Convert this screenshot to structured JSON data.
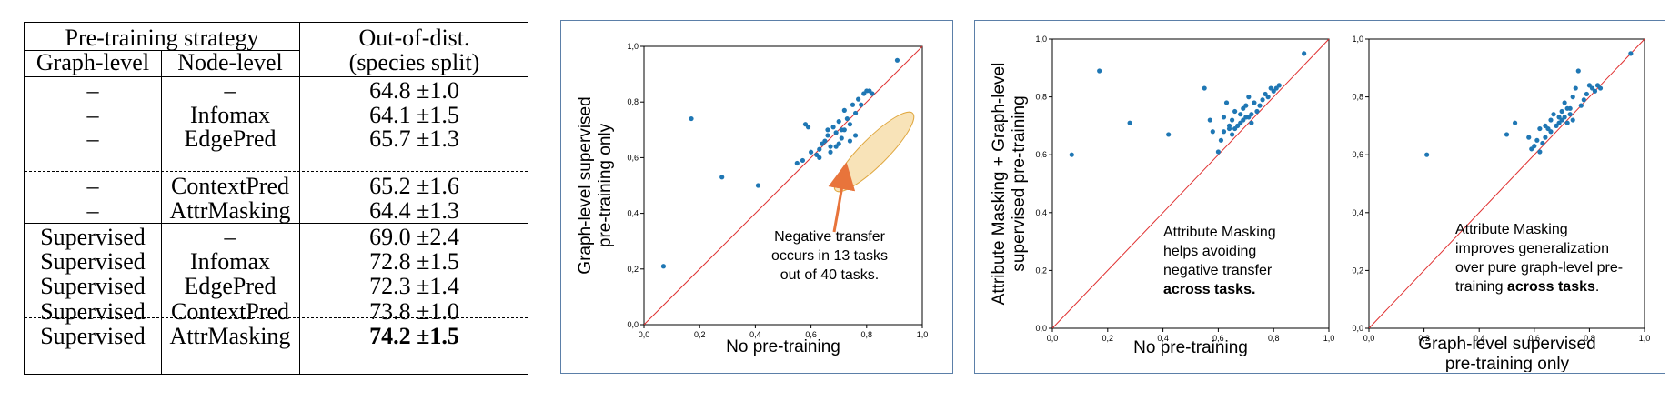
{
  "table": {
    "header_strategy": "Pre-training strategy",
    "header_ood_line1": "Out-of-dist.",
    "header_ood_line2": "(species split)",
    "col_graph": "Graph-level",
    "col_node": "Node-level",
    "rows": [
      {
        "graph": "–",
        "node": "–",
        "score": "64.8 ±1.0",
        "bold": false
      },
      {
        "graph": "–",
        "node": "Infomax",
        "score": "64.1 ±1.5",
        "bold": false
      },
      {
        "graph": "–",
        "node": "EdgePred",
        "score": "65.7 ±1.3",
        "bold": false
      },
      {
        "graph": "–",
        "node": "ContextPred",
        "score": "65.2 ±1.6",
        "bold": false
      },
      {
        "graph": "–",
        "node": "AttrMasking",
        "score": "64.4 ±1.3",
        "bold": false
      },
      {
        "graph": "Supervised",
        "node": "–",
        "score": "69.0 ±2.4",
        "bold": false
      },
      {
        "graph": "Supervised",
        "node": "Infomax",
        "score": "72.8 ±1.5",
        "bold": false
      },
      {
        "graph": "Supervised",
        "node": "EdgePred",
        "score": "72.3 ±1.4",
        "bold": false
      },
      {
        "graph": "Supervised",
        "node": "ContextPred",
        "score": "73.8 ±1.0",
        "bold": false
      },
      {
        "graph": "Supervised",
        "node": "AttrMasking",
        "score": "74.2 ±1.5",
        "bold": true
      }
    ]
  },
  "chart_data": [
    {
      "type": "scatter",
      "xlabel": "No pre-training",
      "ylabel_line1": "Graph-level supervised",
      "ylabel_line2": "pre-training only",
      "xlim": [
        0,
        1
      ],
      "ylim": [
        0,
        1
      ],
      "ticks": [
        "0,0",
        "0,2",
        "0,4",
        "0,6",
        "0,8",
        "1,0"
      ],
      "annotation": [
        "Negative transfer",
        "occurs in 13 tasks",
        "out of 40 tasks."
      ],
      "highlight_color": "#f5d9a0",
      "arrow_color": "#e8743b",
      "point_color": "#1f77b4",
      "diag_color": "#e03030",
      "x": [
        0.07,
        0.17,
        0.28,
        0.41,
        0.58,
        0.55,
        0.62,
        0.63,
        0.65,
        0.66,
        0.67,
        0.68,
        0.69,
        0.7,
        0.71,
        0.72,
        0.73,
        0.74,
        0.75,
        0.76,
        0.77,
        0.78,
        0.79,
        0.8,
        0.81,
        0.82,
        0.6,
        0.57,
        0.64,
        0.72,
        0.74,
        0.76,
        0.69,
        0.67,
        0.71,
        0.91,
        0.59,
        0.63,
        0.66,
        0.7
      ],
      "y": [
        0.21,
        0.74,
        0.53,
        0.5,
        0.72,
        0.58,
        0.61,
        0.63,
        0.66,
        0.68,
        0.64,
        0.71,
        0.69,
        0.73,
        0.7,
        0.77,
        0.74,
        0.72,
        0.79,
        0.76,
        0.81,
        0.79,
        0.83,
        0.84,
        0.84,
        0.83,
        0.62,
        0.59,
        0.65,
        0.7,
        0.66,
        0.68,
        0.64,
        0.62,
        0.67,
        0.95,
        0.71,
        0.6,
        0.7,
        0.65
      ]
    },
    {
      "type": "scatter",
      "xlabel": "No pre-training",
      "ylabel_line1": "Attribute Masking + Graph-level",
      "ylabel_line2": "supervised pre-training",
      "xlim": [
        0,
        1
      ],
      "ylim": [
        0,
        1
      ],
      "ticks": [
        "0,0",
        "0,2",
        "0,4",
        "0,6",
        "0,8",
        "1,0"
      ],
      "annotation": [
        "Attribute Masking",
        "helps avoiding",
        "negative transfer",
        "across tasks."
      ],
      "x": [
        0.07,
        0.17,
        0.28,
        0.42,
        0.55,
        0.57,
        0.58,
        0.6,
        0.61,
        0.62,
        0.63,
        0.64,
        0.65,
        0.66,
        0.67,
        0.68,
        0.69,
        0.7,
        0.71,
        0.72,
        0.73,
        0.74,
        0.75,
        0.76,
        0.77,
        0.78,
        0.79,
        0.8,
        0.81,
        0.82,
        0.91,
        0.65,
        0.68,
        0.7,
        0.62,
        0.66,
        0.69,
        0.72,
        0.64,
        0.71
      ],
      "y": [
        0.6,
        0.89,
        0.71,
        0.67,
        0.83,
        0.72,
        0.68,
        0.61,
        0.65,
        0.73,
        0.78,
        0.69,
        0.72,
        0.75,
        0.7,
        0.74,
        0.76,
        0.73,
        0.8,
        0.71,
        0.78,
        0.75,
        0.77,
        0.79,
        0.81,
        0.8,
        0.83,
        0.82,
        0.83,
        0.84,
        0.95,
        0.67,
        0.71,
        0.77,
        0.68,
        0.69,
        0.72,
        0.74,
        0.7,
        0.73
      ]
    },
    {
      "type": "scatter",
      "xlabel_line1": "Graph-level supervised",
      "xlabel_line2": "pre-training only",
      "xlim": [
        0,
        1
      ],
      "ylim": [
        0,
        1
      ],
      "ticks": [
        "0,0",
        "0,2",
        "0,4",
        "0,6",
        "0,8",
        "1,0"
      ],
      "annotation": [
        "Attribute Masking",
        "improves generalization",
        "over pure graph-level pre-",
        "training across tasks."
      ],
      "x": [
        0.21,
        0.5,
        0.53,
        0.58,
        0.59,
        0.6,
        0.61,
        0.62,
        0.63,
        0.64,
        0.65,
        0.66,
        0.67,
        0.68,
        0.69,
        0.7,
        0.71,
        0.72,
        0.73,
        0.74,
        0.75,
        0.76,
        0.77,
        0.78,
        0.79,
        0.8,
        0.81,
        0.82,
        0.83,
        0.84,
        0.95,
        0.72,
        0.71,
        0.74,
        0.66,
        0.64,
        0.62,
        0.69,
        0.7,
        0.73
      ],
      "y": [
        0.6,
        0.67,
        0.71,
        0.66,
        0.62,
        0.63,
        0.65,
        0.61,
        0.64,
        0.7,
        0.69,
        0.72,
        0.74,
        0.7,
        0.73,
        0.75,
        0.78,
        0.71,
        0.76,
        0.8,
        0.83,
        0.89,
        0.77,
        0.79,
        0.81,
        0.84,
        0.83,
        0.82,
        0.84,
        0.83,
        0.95,
        0.76,
        0.73,
        0.72,
        0.68,
        0.66,
        0.69,
        0.71,
        0.72,
        0.74
      ]
    }
  ]
}
